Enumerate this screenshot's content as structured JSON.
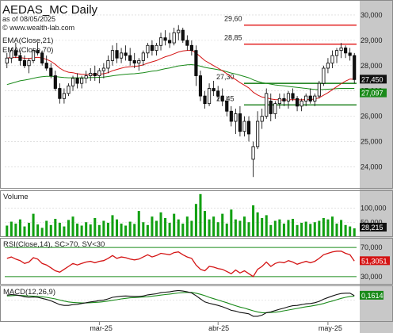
{
  "chart_data": {
    "title": "AEDAS_MC Daily",
    "as_of": "as of 08/05/2025",
    "watermark": "© www.wealth-lab.com",
    "type": "candlestick",
    "date_labels": [
      "mar-25",
      "abr-25",
      "may-25"
    ],
    "price_panel": {
      "ylim": [
        23.2,
        30.5
      ],
      "y_ticks": [
        "30,000",
        "29,000",
        "28,000",
        "27,000",
        "26,000",
        "25,000",
        "24,000"
      ],
      "legend": [
        "EMA(Close,21)",
        "EMA(Close,70)"
      ],
      "levels": [
        {
          "label": "29,60",
          "value": 29.6
        },
        {
          "label": "28,85",
          "value": 28.85
        },
        {
          "label": "27,30",
          "value": 27.3
        },
        {
          "label": "26,45",
          "value": 26.45
        }
      ],
      "last_price_label": "27,450",
      "ema70_label": "27,097",
      "ohlc": [
        [
          28.1,
          28.5,
          27.9,
          28.3
        ],
        [
          28.3,
          28.7,
          28.1,
          28.6
        ],
        [
          28.6,
          28.9,
          28.3,
          28.4
        ],
        [
          28.4,
          28.6,
          28.0,
          28.2
        ],
        [
          28.2,
          28.4,
          27.9,
          28.0
        ],
        [
          28.0,
          28.3,
          27.7,
          28.2
        ],
        [
          28.2,
          28.7,
          28.1,
          28.6
        ],
        [
          28.6,
          28.9,
          28.4,
          28.5
        ],
        [
          28.5,
          28.6,
          28.0,
          28.1
        ],
        [
          28.1,
          28.4,
          27.8,
          27.9
        ],
        [
          27.9,
          28.1,
          27.5,
          27.6
        ],
        [
          27.6,
          27.8,
          27.0,
          27.1
        ],
        [
          27.1,
          27.3,
          26.5,
          26.7
        ],
        [
          26.7,
          27.1,
          26.5,
          26.9
        ],
        [
          26.9,
          27.3,
          26.8,
          27.2
        ],
        [
          27.2,
          27.6,
          27.0,
          27.5
        ],
        [
          27.5,
          27.7,
          27.1,
          27.3
        ],
        [
          27.3,
          27.6,
          27.1,
          27.5
        ],
        [
          27.5,
          27.8,
          27.3,
          27.6
        ],
        [
          27.6,
          27.9,
          27.4,
          27.7
        ],
        [
          27.7,
          28.0,
          27.4,
          27.6
        ],
        [
          27.6,
          27.9,
          27.3,
          27.8
        ],
        [
          27.8,
          28.1,
          27.5,
          27.9
        ],
        [
          27.9,
          28.4,
          27.7,
          28.2
        ],
        [
          28.2,
          28.8,
          28.0,
          28.6
        ],
        [
          28.6,
          28.9,
          28.1,
          28.3
        ],
        [
          28.3,
          28.7,
          28.1,
          28.5
        ],
        [
          28.5,
          28.8,
          28.2,
          28.4
        ],
        [
          28.4,
          28.7,
          28.0,
          28.2
        ],
        [
          28.2,
          28.5,
          27.9,
          28.1
        ],
        [
          28.1,
          28.3,
          27.8,
          28.2
        ],
        [
          28.2,
          28.6,
          28.0,
          28.5
        ],
        [
          28.5,
          28.9,
          28.3,
          28.8
        ],
        [
          28.8,
          29.0,
          28.4,
          28.6
        ],
        [
          28.6,
          28.9,
          28.4,
          28.8
        ],
        [
          28.8,
          29.3,
          28.6,
          29.1
        ],
        [
          29.1,
          29.4,
          28.8,
          29.0
        ],
        [
          29.0,
          29.3,
          28.7,
          28.9
        ],
        [
          28.9,
          29.5,
          28.8,
          29.3
        ],
        [
          29.3,
          29.6,
          29.0,
          29.4
        ],
        [
          29.4,
          29.5,
          28.9,
          29.0
        ],
        [
          29.0,
          29.2,
          28.6,
          28.8
        ],
        [
          28.8,
          29.0,
          28.4,
          28.6
        ],
        [
          28.6,
          28.8,
          27.2,
          27.6
        ],
        [
          27.6,
          27.8,
          26.6,
          26.8
        ],
        [
          26.8,
          27.0,
          26.3,
          26.5
        ],
        [
          26.5,
          27.3,
          26.4,
          27.1
        ],
        [
          27.1,
          27.4,
          26.8,
          27.0
        ],
        [
          27.0,
          27.2,
          26.6,
          26.8
        ],
        [
          26.8,
          27.1,
          26.4,
          26.6
        ],
        [
          26.6,
          26.8,
          26.0,
          26.2
        ],
        [
          26.2,
          26.4,
          25.6,
          25.8
        ],
        [
          25.8,
          26.3,
          25.3,
          26.1
        ],
        [
          26.1,
          26.4,
          25.2,
          25.4
        ],
        [
          25.4,
          26.0,
          25.2,
          25.8
        ],
        [
          25.8,
          26.0,
          25.0,
          25.3
        ],
        [
          24.3,
          25.0,
          23.6,
          24.8
        ],
        [
          24.8,
          26.2,
          24.7,
          25.8
        ],
        [
          25.8,
          26.3,
          25.5,
          26.0
        ],
        [
          26.0,
          27.1,
          25.9,
          26.9
        ],
        [
          26.6,
          26.9,
          25.8,
          26.1
        ],
        [
          26.1,
          26.6,
          25.9,
          26.5
        ],
        [
          26.5,
          26.9,
          26.3,
          26.7
        ],
        [
          26.7,
          26.9,
          26.4,
          26.6
        ],
        [
          26.6,
          27.0,
          26.3,
          26.9
        ],
        [
          26.9,
          27.1,
          26.6,
          26.7
        ],
        [
          26.7,
          26.8,
          26.2,
          26.4
        ],
        [
          26.4,
          26.7,
          26.2,
          26.6
        ],
        [
          26.6,
          26.9,
          26.4,
          26.8
        ],
        [
          26.8,
          27.1,
          26.5,
          26.6
        ],
        [
          26.6,
          26.9,
          26.4,
          26.8
        ],
        [
          26.8,
          27.4,
          26.7,
          27.3
        ],
        [
          27.3,
          28.0,
          27.2,
          27.9
        ],
        [
          27.9,
          28.3,
          27.7,
          28.1
        ],
        [
          28.1,
          28.6,
          27.9,
          28.4
        ],
        [
          28.4,
          28.7,
          28.1,
          28.6
        ],
        [
          28.6,
          28.9,
          28.3,
          28.7
        ],
        [
          28.7,
          28.8,
          28.3,
          28.5
        ],
        [
          28.5,
          28.7,
          28.2,
          28.4
        ],
        [
          28.4,
          28.5,
          27.3,
          27.45
        ]
      ],
      "ema21": [
        28.3,
        28.32,
        28.33,
        28.32,
        28.29,
        28.28,
        28.31,
        28.33,
        28.3,
        28.25,
        28.17,
        28.05,
        27.9,
        27.8,
        27.74,
        27.72,
        27.68,
        27.66,
        27.65,
        27.65,
        27.65,
        27.66,
        27.68,
        27.72,
        27.8,
        27.85,
        27.9,
        27.94,
        27.96,
        27.97,
        27.99,
        28.03,
        28.1,
        28.15,
        28.2,
        28.28,
        28.35,
        28.4,
        28.47,
        28.54,
        28.58,
        28.6,
        28.6,
        28.5,
        28.35,
        28.2,
        28.1,
        28.0,
        27.9,
        27.8,
        27.68,
        27.55,
        27.45,
        27.33,
        27.23,
        27.12,
        26.95,
        26.84,
        26.76,
        26.73,
        26.68,
        26.66,
        26.65,
        26.64,
        26.65,
        26.66,
        26.65,
        26.65,
        26.66,
        26.66,
        26.68,
        26.73,
        26.83,
        26.93,
        27.05,
        27.17,
        27.29,
        27.39,
        27.47,
        27.46
      ],
      "ema70": [
        27.25,
        27.3,
        27.35,
        27.4,
        27.43,
        27.46,
        27.5,
        27.54,
        27.56,
        27.58,
        27.58,
        27.57,
        27.55,
        27.53,
        27.52,
        27.52,
        27.52,
        27.52,
        27.52,
        27.53,
        27.53,
        27.54,
        27.55,
        27.57,
        27.6,
        27.62,
        27.64,
        27.66,
        27.67,
        27.68,
        27.7,
        27.72,
        27.75,
        27.78,
        27.8,
        27.84,
        27.88,
        27.91,
        27.95,
        27.99,
        28.01,
        28.03,
        28.04,
        28.02,
        27.98,
        27.93,
        27.9,
        27.87,
        27.84,
        27.81,
        27.76,
        27.71,
        27.67,
        27.62,
        27.57,
        27.52,
        27.44,
        27.38,
        27.33,
        27.3,
        27.27,
        27.24,
        27.22,
        27.2,
        27.18,
        27.16,
        27.14,
        27.12,
        27.1,
        27.08,
        27.06,
        27.05,
        27.06,
        27.07,
        27.08,
        27.09,
        27.1,
        27.1,
        27.1,
        27.1
      ]
    },
    "volume_panel": {
      "label": "Volume",
      "y_ticks": [
        "100,000",
        "50,000"
      ],
      "last_label": "28,215",
      "ymax": 155000,
      "values": [
        38000,
        52000,
        45000,
        60000,
        35000,
        48000,
        80000,
        42000,
        30000,
        55000,
        40000,
        62000,
        48000,
        35000,
        58000,
        70000,
        45000,
        38000,
        50000,
        42000,
        65000,
        40000,
        55000,
        48000,
        75000,
        60000,
        45000,
        38000,
        52000,
        44000,
        90000,
        50000,
        40000,
        70000,
        55000,
        85000,
        65000,
        48000,
        80000,
        60000,
        45000,
        70000,
        55000,
        115000,
        150000,
        90000,
        60000,
        70000,
        50000,
        80000,
        45000,
        95000,
        60000,
        55000,
        70000,
        50000,
        110000,
        85000,
        65000,
        75000,
        40000,
        55000,
        60000,
        45000,
        58000,
        62000,
        40000,
        48000,
        52000,
        44000,
        50000,
        55000,
        65000,
        60000,
        70000,
        45000,
        58000,
        40000,
        35000,
        28215
      ]
    },
    "rsi_panel": {
      "label": "RSI(Close,14), SC>70, SV<30",
      "y_ticks": [
        "70,000",
        "30,000"
      ],
      "last_label": "51,3051",
      "ylim": [
        20,
        80
      ],
      "upper": 70,
      "lower": 30,
      "values": [
        55,
        57,
        54,
        52,
        48,
        50,
        56,
        54,
        48,
        46,
        42,
        38,
        36,
        40,
        44,
        48,
        46,
        48,
        50,
        51,
        49,
        51,
        52,
        55,
        59,
        55,
        57,
        56,
        54,
        53,
        54,
        57,
        60,
        57,
        59,
        62,
        61,
        60,
        63,
        64,
        60,
        57,
        55,
        46,
        40,
        38,
        44,
        43,
        41,
        40,
        37,
        34,
        39,
        35,
        38,
        34,
        30,
        40,
        44,
        50,
        44,
        48,
        50,
        49,
        52,
        50,
        47,
        49,
        51,
        49,
        51,
        55,
        60,
        62,
        64,
        65,
        65,
        62,
        60,
        51.3
      ]
    },
    "macd_panel": {
      "label": "MACD(12,26,9)",
      "last_label": "0,1614",
      "ylim": [
        -0.75,
        0.45
      ],
      "macd": [
        0.18,
        0.2,
        0.19,
        0.16,
        0.12,
        0.1,
        0.11,
        0.1,
        0.06,
        0.02,
        -0.03,
        -0.1,
        -0.17,
        -0.2,
        -0.2,
        -0.17,
        -0.16,
        -0.13,
        -0.1,
        -0.07,
        -0.05,
        -0.02,
        0.0,
        0.04,
        0.1,
        0.12,
        0.14,
        0.15,
        0.14,
        0.13,
        0.13,
        0.15,
        0.19,
        0.21,
        0.23,
        0.27,
        0.29,
        0.3,
        0.33,
        0.35,
        0.33,
        0.3,
        0.26,
        0.16,
        0.04,
        -0.07,
        -0.12,
        -0.16,
        -0.2,
        -0.25,
        -0.31,
        -0.38,
        -0.41,
        -0.46,
        -0.48,
        -0.51,
        -0.6,
        -0.6,
        -0.56,
        -0.47,
        -0.44,
        -0.39,
        -0.34,
        -0.3,
        -0.25,
        -0.21,
        -0.2,
        -0.17,
        -0.14,
        -0.13,
        -0.1,
        -0.05,
        0.03,
        0.09,
        0.15,
        0.2,
        0.24,
        0.25,
        0.25,
        0.16
      ],
      "signal": [
        0.15,
        0.16,
        0.17,
        0.17,
        0.16,
        0.15,
        0.14,
        0.13,
        0.12,
        0.1,
        0.07,
        0.04,
        0.0,
        -0.04,
        -0.07,
        -0.09,
        -0.1,
        -0.11,
        -0.11,
        -0.1,
        -0.09,
        -0.08,
        -0.06,
        -0.04,
        -0.01,
        0.01,
        0.04,
        0.06,
        0.08,
        0.09,
        0.1,
        0.11,
        0.12,
        0.14,
        0.16,
        0.18,
        0.2,
        0.22,
        0.24,
        0.26,
        0.27,
        0.28,
        0.28,
        0.25,
        0.21,
        0.16,
        0.1,
        0.05,
        0.0,
        -0.05,
        -0.1,
        -0.16,
        -0.21,
        -0.26,
        -0.3,
        -0.35,
        -0.4,
        -0.44,
        -0.47,
        -0.47,
        -0.46,
        -0.45,
        -0.43,
        -0.4,
        -0.37,
        -0.34,
        -0.31,
        -0.28,
        -0.25,
        -0.23,
        -0.2,
        -0.17,
        -0.13,
        -0.08,
        -0.04,
        0.01,
        0.06,
        0.1,
        0.13,
        0.14
      ]
    }
  }
}
